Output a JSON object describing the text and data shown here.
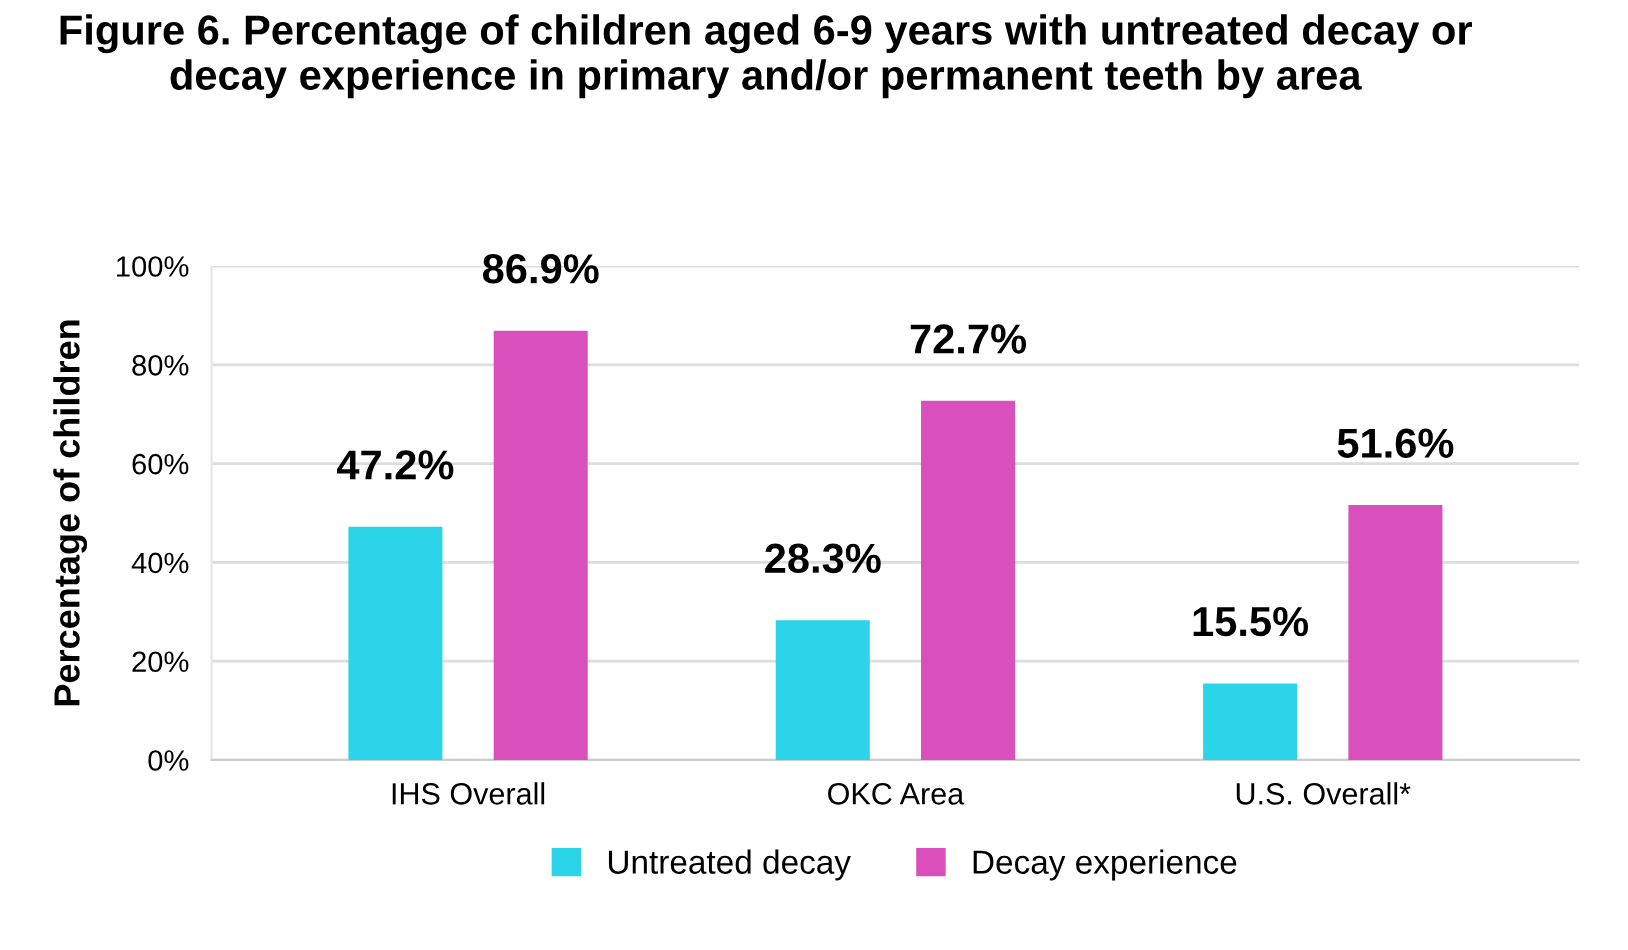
{
  "chart_data": {
    "type": "bar",
    "title": "Figure 6. Percentage of children aged 6-9 years with untreated decay or decay experience in primary and/or permanent teeth by area",
    "ylabel": "Percentage of children",
    "categories": [
      "IHS Overall",
      "OKC Area",
      "U.S. Overall*"
    ],
    "series": [
      {
        "name": "Untreated decay",
        "color": "#2bd4e8",
        "values": [
          47.2,
          28.3,
          15.5
        ],
        "value_labels": [
          "47.2%",
          "28.3%",
          "15.5%"
        ]
      },
      {
        "name": "Decay experience",
        "color": "#d94fbb",
        "values": [
          86.9,
          72.7,
          51.6
        ],
        "value_labels": [
          "86.9%",
          "72.7%",
          "51.6%"
        ]
      }
    ],
    "ylim": [
      0,
      100
    ],
    "yticks": [
      {
        "value": 0,
        "label": "0%"
      },
      {
        "value": 20,
        "label": "20%"
      },
      {
        "value": 40,
        "label": "40%"
      },
      {
        "value": 60,
        "label": "60%"
      },
      {
        "value": 80,
        "label": "80%"
      },
      {
        "value": 100,
        "label": "100%"
      }
    ],
    "grid": "y",
    "legend": "bottom"
  }
}
